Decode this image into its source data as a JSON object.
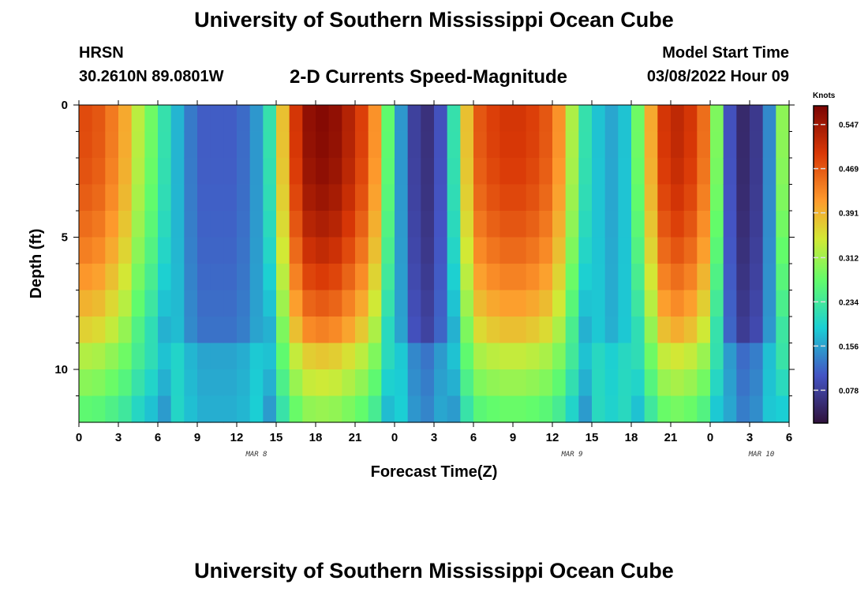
{
  "header": {
    "title": "University of Southern Mississippi Ocean Cube",
    "station": "HRSN",
    "coords": "30.2610N  89.0801W",
    "subtitle": "2-D Currents Speed-Magnitude",
    "model_start_label": "Model Start Time",
    "model_start_value": "03/08/2022 Hour 09"
  },
  "footer": {
    "title": "University of Southern Mississippi Ocean Cube"
  },
  "chart_data": {
    "type": "heatmap",
    "title": "2-D Currents Speed-Magnitude",
    "xlabel": "Forecast Time(Z)",
    "ylabel": "Depth (ft)",
    "x_tick_labels": [
      "0",
      "3",
      "6",
      "9",
      "12",
      "15",
      "18",
      "21",
      "0",
      "3",
      "6",
      "9",
      "12",
      "15",
      "18",
      "21",
      "0",
      "3",
      "6"
    ],
    "y_tick_labels": [
      "0",
      "5",
      "10"
    ],
    "ylim": [
      0,
      12
    ],
    "date_labels": [
      "MAR 8",
      "MAR 9",
      "MAR 10"
    ],
    "colorbar": {
      "label": "Knots",
      "ticks": [
        "0.547",
        "0.469",
        "0.391",
        "0.312",
        "0.234",
        "0.156",
        "0.078"
      ],
      "range": [
        0.02,
        0.58
      ]
    },
    "n_hours": 54,
    "depth_levels": 12,
    "time_profile_surface": [
      0.48,
      0.47,
      0.44,
      0.4,
      0.33,
      0.28,
      0.22,
      0.17,
      0.13,
      0.11,
      0.11,
      0.11,
      0.12,
      0.15,
      0.22,
      0.38,
      0.5,
      0.56,
      0.57,
      0.56,
      0.53,
      0.49,
      0.42,
      0.27,
      0.15,
      0.08,
      0.06,
      0.1,
      0.22,
      0.38,
      0.47,
      0.49,
      0.5,
      0.5,
      0.49,
      0.47,
      0.42,
      0.32,
      0.22,
      0.18,
      0.16,
      0.18,
      0.28,
      0.4,
      0.5,
      0.52,
      0.5,
      0.45,
      0.29,
      0.1,
      0.05,
      0.07,
      0.14,
      0.3
    ]
  }
}
